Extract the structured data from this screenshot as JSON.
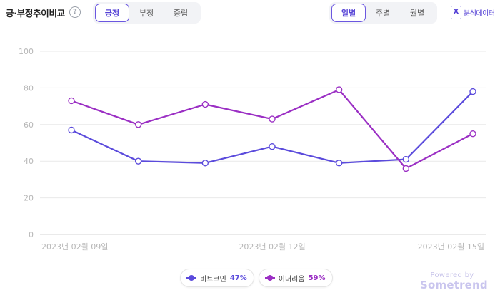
{
  "header": {
    "title": "긍·부정추이비교",
    "help_glyph": "?"
  },
  "sentiment_tabs": [
    {
      "label": "긍정",
      "active": true
    },
    {
      "label": "부정",
      "active": false
    },
    {
      "label": "중립",
      "active": false
    }
  ],
  "period_tabs": [
    {
      "label": "일별",
      "active": true
    },
    {
      "label": "주별",
      "active": false
    },
    {
      "label": "월별",
      "active": false
    }
  ],
  "export": {
    "label": "분석데이터",
    "icon": "excel-icon",
    "icon_glyph": "X"
  },
  "colors": {
    "bitcoin": "#5b4bdc",
    "ethereum": "#9b2fc4",
    "accent": "#5542d6"
  },
  "chart_data": {
    "type": "line",
    "x": [
      "2023-02-09",
      "2023-02-10",
      "2023-02-11",
      "2023-02-12",
      "2023-02-13",
      "2023-02-14",
      "2023-02-15"
    ],
    "x_tick_labels": [
      {
        "index": 0,
        "label": "2023년 02월 09일"
      },
      {
        "index": 3,
        "label": "2023년 02월 12일"
      },
      {
        "index": 6,
        "label": "2023년 02월 15일"
      }
    ],
    "ylim": [
      0,
      100
    ],
    "yticks": [
      0,
      20,
      40,
      60,
      80,
      100
    ],
    "grid": true,
    "series": [
      {
        "name": "비트코인",
        "share": "47%",
        "color": "#5b4bdc",
        "values": [
          57,
          40,
          39,
          48,
          39,
          41,
          78
        ]
      },
      {
        "name": "이더리움",
        "share": "59%",
        "color": "#9b2fc4",
        "values": [
          73,
          60,
          71,
          63,
          79,
          36,
          55
        ]
      }
    ],
    "legend_position": "bottom-center"
  },
  "powered": {
    "by": "Powered by",
    "brand": "Sometrend"
  }
}
